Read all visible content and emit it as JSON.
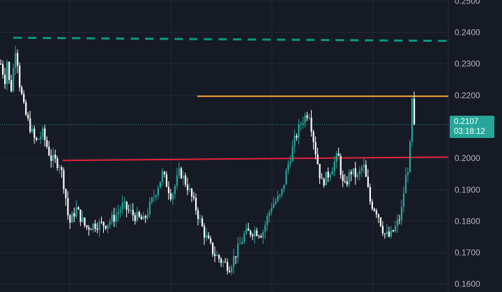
{
  "colors": {
    "background": "#161a25",
    "grid": "#232733",
    "candle": "#26a69a",
    "candle_down": "#ffffff",
    "resistance_line": "#089981",
    "orange_line": "#f7a23b",
    "red_line": "#e5213b",
    "badge": "#26a69a",
    "axis_text": "#b2b5be"
  },
  "price_badge": {
    "price": "0.2107",
    "countdown": "03:18:12"
  },
  "chart_data": {
    "type": "candlestick",
    "y_tick_labels": [
      "0.2500",
      "0.2400",
      "0.2300",
      "0.2200",
      "0.2000",
      "0.1900",
      "0.1800",
      "0.1700",
      "0.1600"
    ],
    "ylim": [
      0.1575,
      0.2503
    ],
    "grid": true,
    "current_price": 0.2107,
    "horizontal_lines": [
      {
        "color_key": "resistance_line",
        "style": "dashed",
        "y_start": 0.2383,
        "y_end": 0.2373,
        "from_fraction": 0.03,
        "to_fraction": 1.0
      },
      {
        "color_key": "orange_line",
        "style": "solid",
        "y_start": 0.2197,
        "y_end": 0.2197,
        "from_fraction": 0.44,
        "to_fraction": 1.0
      },
      {
        "color_key": "red_line",
        "style": "solid",
        "y_start": 0.1993,
        "y_end": 0.2004,
        "from_fraction": 0.14,
        "to_fraction": 1.0
      }
    ],
    "price_path": [
      [
        0,
        0.23
      ],
      [
        6,
        0.225
      ],
      [
        9,
        0.231
      ],
      [
        14,
        0.22
      ],
      [
        22,
        0.237
      ],
      [
        26,
        0.225
      ],
      [
        34,
        0.215
      ],
      [
        42,
        0.21
      ],
      [
        50,
        0.205
      ],
      [
        60,
        0.208
      ],
      [
        72,
        0.2
      ],
      [
        85,
        0.198
      ],
      [
        92,
        0.19
      ],
      [
        98,
        0.179
      ],
      [
        108,
        0.184
      ],
      [
        122,
        0.178
      ],
      [
        135,
        0.179
      ],
      [
        150,
        0.179
      ],
      [
        162,
        0.181
      ],
      [
        175,
        0.185
      ],
      [
        190,
        0.182
      ],
      [
        205,
        0.18
      ],
      [
        218,
        0.187
      ],
      [
        232,
        0.195
      ],
      [
        245,
        0.188
      ],
      [
        257,
        0.196
      ],
      [
        268,
        0.191
      ],
      [
        280,
        0.184
      ],
      [
        292,
        0.176
      ],
      [
        305,
        0.17
      ],
      [
        318,
        0.167
      ],
      [
        328,
        0.1655
      ],
      [
        338,
        0.17
      ],
      [
        350,
        0.176
      ],
      [
        365,
        0.177
      ],
      [
        375,
        0.176
      ],
      [
        388,
        0.185
      ],
      [
        402,
        0.188
      ],
      [
        412,
        0.198
      ],
      [
        422,
        0.206
      ],
      [
        432,
        0.212
      ],
      [
        442,
        0.215
      ],
      [
        450,
        0.204
      ],
      [
        460,
        0.192
      ],
      [
        470,
        0.195
      ],
      [
        484,
        0.201
      ],
      [
        492,
        0.19
      ],
      [
        502,
        0.196
      ],
      [
        512,
        0.194
      ],
      [
        520,
        0.198
      ],
      [
        530,
        0.186
      ],
      [
        540,
        0.183
      ],
      [
        550,
        0.176
      ],
      [
        558,
        0.175
      ],
      [
        566,
        0.178
      ],
      [
        574,
        0.182
      ],
      [
        580,
        0.193
      ],
      [
        586,
        0.199
      ],
      [
        590,
        0.218
      ],
      [
        593,
        0.2107
      ]
    ],
    "candle_count": 198,
    "seed": 7
  }
}
